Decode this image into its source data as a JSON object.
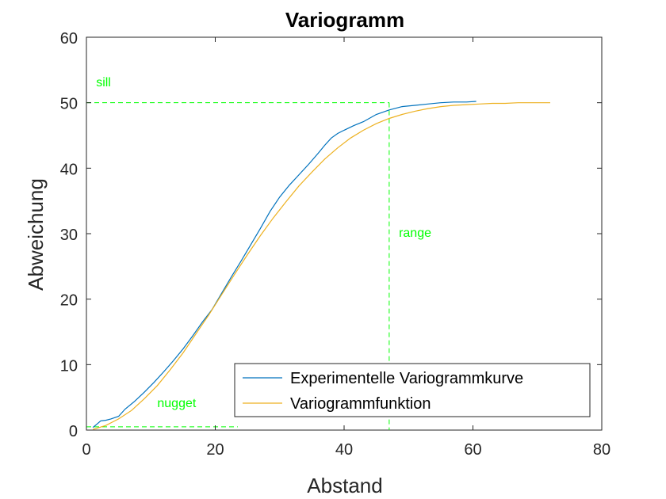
{
  "chart_data": {
    "type": "line",
    "title": "Variogramm",
    "xlabel": "Abstand",
    "ylabel": "Abweichung",
    "xlim": [
      0,
      80
    ],
    "ylim": [
      0,
      60
    ],
    "xticks": [
      "0",
      "20",
      "40",
      "60",
      "80"
    ],
    "yticks": [
      "0",
      "10",
      "20",
      "30",
      "40",
      "50",
      "60"
    ],
    "grid": false,
    "legend_position": "bottom-right",
    "series": [
      {
        "name": "Experimentelle Variogrammkurve",
        "color": "#0072BD",
        "x": [
          1,
          1.5,
          2.2,
          3,
          3.8,
          5,
          6,
          7.5,
          9,
          10.5,
          12,
          13.5,
          15,
          16.5,
          18,
          19.5,
          21,
          22.5,
          24,
          25.5,
          27,
          28.5,
          30,
          31.5,
          33,
          34.5,
          36,
          37,
          38,
          39,
          40,
          41.5,
          43,
          45,
          47,
          49,
          51,
          53,
          55,
          57,
          59,
          60.5
        ],
        "y": [
          0.4,
          0.8,
          1.4,
          1.5,
          1.7,
          2.1,
          3.2,
          4.4,
          5.8,
          7.3,
          8.9,
          10.6,
          12.4,
          14.4,
          16.5,
          18.4,
          20.9,
          23.4,
          25.8,
          28.3,
          30.8,
          33.4,
          35.6,
          37.4,
          39.0,
          40.6,
          42.3,
          43.5,
          44.6,
          45.3,
          45.8,
          46.5,
          47.1,
          48.2,
          48.9,
          49.4,
          49.6,
          49.8,
          50.0,
          50.1,
          50.1,
          50.2
        ]
      },
      {
        "name": "Variogrammfunktion",
        "color": "#EDB120",
        "x": [
          1,
          3,
          5,
          7,
          9,
          11,
          13,
          15,
          17,
          19,
          21,
          23,
          25,
          27,
          29,
          31,
          33,
          35,
          37,
          39,
          41,
          43,
          45,
          47,
          49,
          51,
          53,
          55,
          57,
          59,
          61,
          63,
          65,
          67,
          69,
          72
        ],
        "y": [
          0.1,
          0.7,
          1.7,
          3.0,
          4.8,
          6.8,
          9.2,
          11.8,
          14.7,
          17.6,
          20.7,
          23.8,
          26.8,
          29.7,
          32.4,
          34.9,
          37.3,
          39.4,
          41.4,
          43.1,
          44.6,
          45.8,
          46.8,
          47.6,
          48.2,
          48.7,
          49.1,
          49.4,
          49.6,
          49.7,
          49.8,
          49.9,
          49.9,
          50.0,
          50.0,
          50.0
        ]
      }
    ],
    "reference_lines": {
      "color": "#00FF00",
      "sill_y": 50,
      "range_x": 47,
      "nugget_y": 0.5
    },
    "annotations": [
      {
        "text": "sill",
        "x": 1.5,
        "y": 52.5
      },
      {
        "text": "range",
        "x": 48.5,
        "y": 29.5
      },
      {
        "text": "nugget",
        "x": 11,
        "y": 3.5
      }
    ]
  }
}
